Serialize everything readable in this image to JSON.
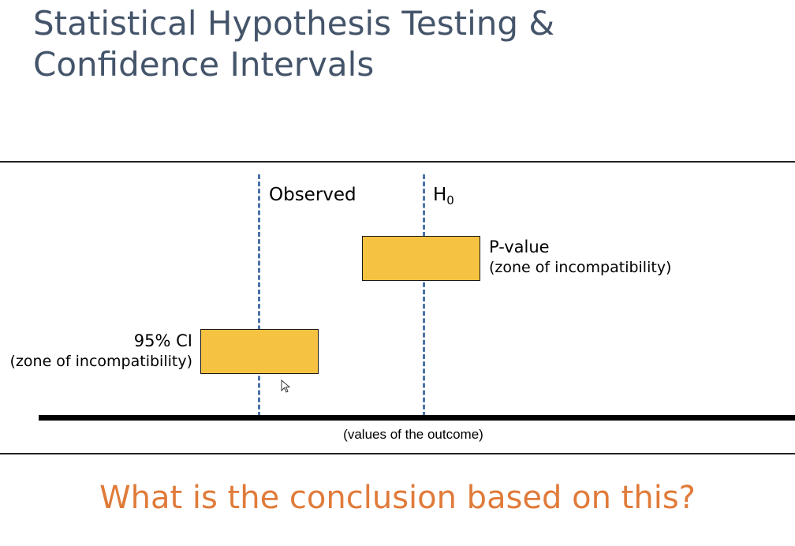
{
  "slide": {
    "title_line1": "Statistical Hypothesis Testing &",
    "title_line2": "Confidence Intervals",
    "question": "What is the conclusion based on this?"
  },
  "diagram": {
    "observed_label": "Observed",
    "h0_label": "H",
    "h0_subscript": "0",
    "pvalue_label": "P-value",
    "pvalue_sublabel": "(zone of incompatibility)",
    "ci_label": "95% CI",
    "ci_sublabel": "(zone of incompatibility)",
    "axis_caption": "(values of the outcome)"
  },
  "colors": {
    "title": "#44546a",
    "dashed_lines": "#4b72a8",
    "boxes": "#f5c242",
    "question": "#e07b3a"
  }
}
